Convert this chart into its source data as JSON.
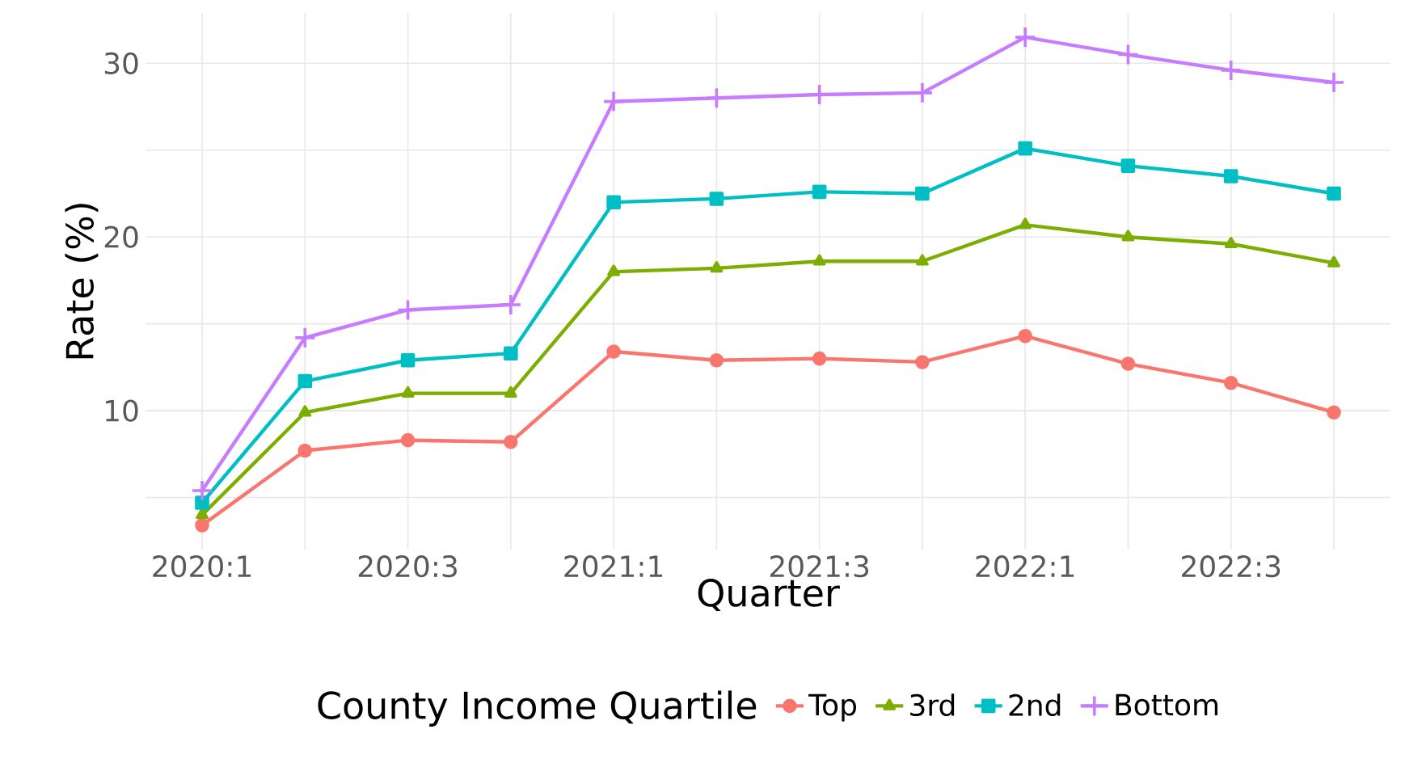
{
  "chart_data": {
    "type": "line",
    "xlabel": "Quarter",
    "ylabel": "Rate (%)",
    "legend_title": "County Income Quartile",
    "categories": [
      "2020:1",
      null,
      "2020:3",
      null,
      "2021:1",
      null,
      "2021:3",
      null,
      "2022:1",
      null,
      "2022:3",
      null
    ],
    "series": [
      {
        "name": "Top",
        "color": "#f8766d",
        "marker": "circle",
        "values": [
          3.4,
          7.7,
          8.3,
          8.2,
          13.4,
          12.9,
          13.0,
          12.8,
          14.3,
          12.7,
          11.6,
          9.9
        ]
      },
      {
        "name": "3rd",
        "color": "#7cae00",
        "marker": "triangle",
        "values": [
          4.0,
          9.9,
          11.0,
          11.0,
          18.0,
          18.2,
          18.6,
          18.6,
          20.7,
          20.0,
          19.6,
          18.5
        ]
      },
      {
        "name": "2nd",
        "color": "#00bfc4",
        "marker": "square",
        "values": [
          4.7,
          11.7,
          12.9,
          13.3,
          22.0,
          22.2,
          22.6,
          22.5,
          25.1,
          24.1,
          23.5,
          22.5
        ]
      },
      {
        "name": "Bottom",
        "color": "#c77cff",
        "marker": "cross",
        "values": [
          5.4,
          14.2,
          15.8,
          16.1,
          27.8,
          28.0,
          28.2,
          28.3,
          31.5,
          30.5,
          29.6,
          28.9
        ]
      }
    ],
    "ylim": [
      2.0,
      32.9
    ],
    "yticks": [
      {
        "value": 5,
        "label": null
      },
      10,
      {
        "value": 15,
        "label": null
      },
      20,
      {
        "value": 25,
        "label": null
      },
      30
    ],
    "grid": true,
    "legend": "bottom",
    "line_style": "solid"
  }
}
